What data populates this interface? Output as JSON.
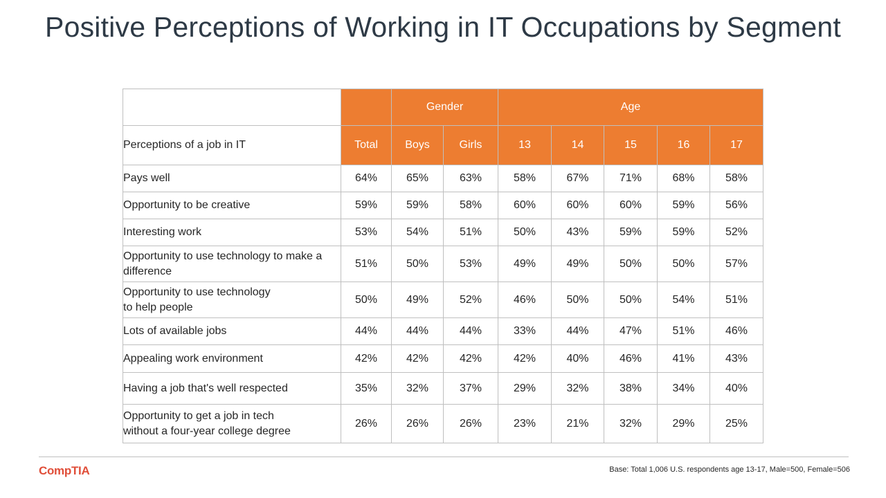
{
  "title": "Positive Perceptions of Working in IT Occupations by Segment",
  "table": {
    "group_headers": {
      "gender": "Gender",
      "age": "Age"
    },
    "row_header": "Perceptions of a job in IT",
    "columns": [
      "Total",
      "Boys",
      "Girls",
      "13",
      "14",
      "15",
      "16",
      "17"
    ],
    "rows": [
      {
        "label": "Pays well",
        "values": [
          "64%",
          "65%",
          "63%",
          "58%",
          "67%",
          "71%",
          "68%",
          "58%"
        ]
      },
      {
        "label": "Opportunity to be creative",
        "values": [
          "59%",
          "59%",
          "58%",
          "60%",
          "60%",
          "60%",
          "59%",
          "56%"
        ]
      },
      {
        "label": "Interesting work",
        "values": [
          "53%",
          "54%",
          "51%",
          "50%",
          "43%",
          "59%",
          "59%",
          "52%"
        ]
      },
      {
        "label": "Opportunity to use technology to make a difference",
        "values": [
          "51%",
          "50%",
          "53%",
          "49%",
          "49%",
          "50%",
          "50%",
          "57%"
        ]
      },
      {
        "label": "Opportunity to use technology\nto help people",
        "values": [
          "50%",
          "49%",
          "52%",
          "46%",
          "50%",
          "50%",
          "54%",
          "51%"
        ]
      },
      {
        "label": "Lots of available jobs",
        "values": [
          "44%",
          "44%",
          "44%",
          "33%",
          "44%",
          "47%",
          "51%",
          "46%"
        ]
      },
      {
        "label": "Appealing work environment",
        "values": [
          "42%",
          "42%",
          "42%",
          "42%",
          "40%",
          "46%",
          "41%",
          "43%"
        ]
      },
      {
        "label": "Having a job that's well respected",
        "values": [
          "35%",
          "32%",
          "37%",
          "29%",
          "32%",
          "38%",
          "34%",
          "40%"
        ]
      },
      {
        "label": "Opportunity to get a job in tech\nwithout a four-year college degree",
        "values": [
          "26%",
          "26%",
          "26%",
          "23%",
          "21%",
          "32%",
          "29%",
          "25%"
        ]
      }
    ]
  },
  "footer": {
    "logo": "CompTIA",
    "base_note": "Base: Total 1,006 U.S. respondents age 13-17, Male=500, Female=506"
  },
  "colors": {
    "accent": "#ed7d31",
    "border": "#bfbfbf",
    "logo": "#e04e39",
    "title": "#2e3a46"
  }
}
